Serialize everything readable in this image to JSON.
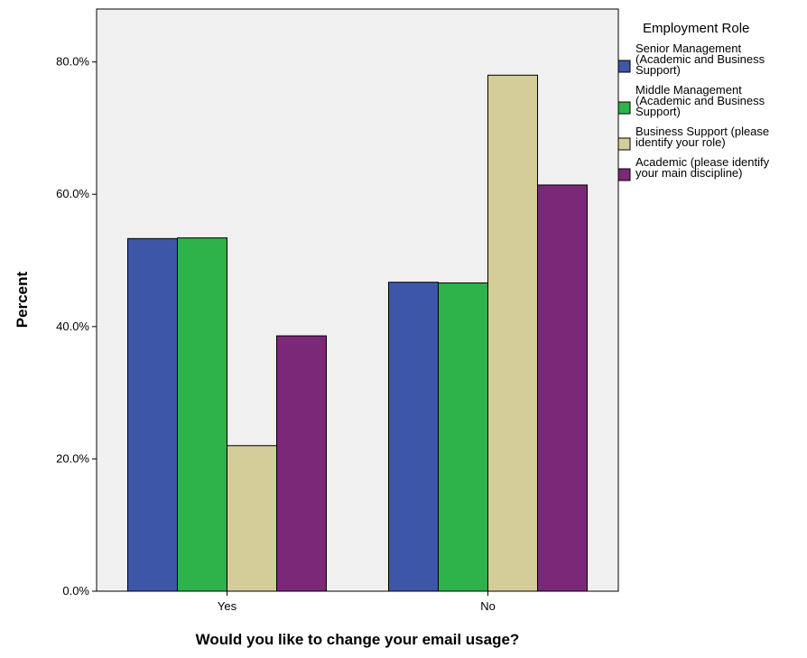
{
  "chart_data": {
    "type": "bar",
    "xlabel": "Would you like to change your email usage?",
    "ylabel": "Percent",
    "categories": [
      "Yes",
      "No"
    ],
    "ylim": [
      0,
      88
    ],
    "yticks": [
      0,
      20,
      40,
      60,
      80
    ],
    "ytick_labels": [
      "0.0%",
      "20.0%",
      "40.0%",
      "60.0%",
      "80.0%"
    ],
    "grid": false,
    "legend": {
      "title": "Employment Role",
      "position": "right"
    },
    "series": [
      {
        "name": "Senior Management (Academic and Business Support)",
        "legend_lines": [
          "Senior Management",
          "(Academic and Business",
          "Support)"
        ],
        "color": "#3d56a8",
        "values": [
          53.3,
          46.7
        ]
      },
      {
        "name": "Middle Management (Academic and Business Support)",
        "legend_lines": [
          "Middle Management",
          "(Academic and Business",
          "Support)"
        ],
        "color": "#2db34a",
        "values": [
          53.4,
          46.6
        ]
      },
      {
        "name": "Business Support (please identify your role)",
        "legend_lines": [
          "Business Support (please",
          "identify your role)"
        ],
        "color": "#d4cc99",
        "values": [
          22.0,
          78.0
        ]
      },
      {
        "name": "Academic (please identify your main discipline)",
        "legend_lines": [
          "Academic (please identify",
          "your main discipline)"
        ],
        "color": "#7b2878",
        "values": [
          38.6,
          61.4
        ]
      }
    ],
    "plot_background": "#f0f0f0"
  }
}
